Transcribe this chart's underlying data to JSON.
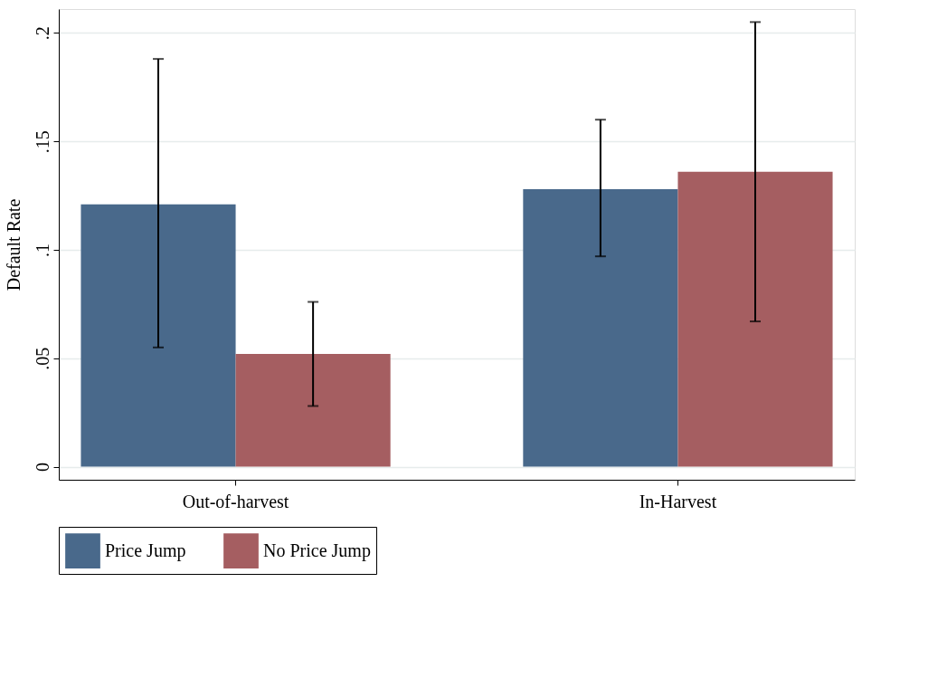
{
  "chart_data": {
    "type": "bar",
    "ylabel": "Default Rate",
    "categories": [
      "Out-of-harvest",
      "In-Harvest"
    ],
    "series": [
      {
        "name": "Price Jump",
        "color": "#49698b",
        "values": [
          0.121,
          0.128
        ],
        "errors": [
          [
            0.055,
            0.188
          ],
          [
            0.097,
            0.16
          ]
        ]
      },
      {
        "name": "No Price Jump",
        "color": "#a55e61",
        "values": [
          0.052,
          0.136
        ],
        "errors": [
          [
            0.028,
            0.076
          ],
          [
            0.067,
            0.205
          ]
        ]
      }
    ],
    "ylim": [
      -0.006,
      0.211
    ],
    "yticks": [
      {
        "value": 0,
        "label": "0"
      },
      {
        "value": 0.05,
        "label": ".05"
      },
      {
        "value": 0.1,
        "label": ".1"
      },
      {
        "value": 0.15,
        "label": ".15"
      },
      {
        "value": 0.2,
        "label": ".2"
      }
    ],
    "grid": "y",
    "legend": "bottom"
  }
}
